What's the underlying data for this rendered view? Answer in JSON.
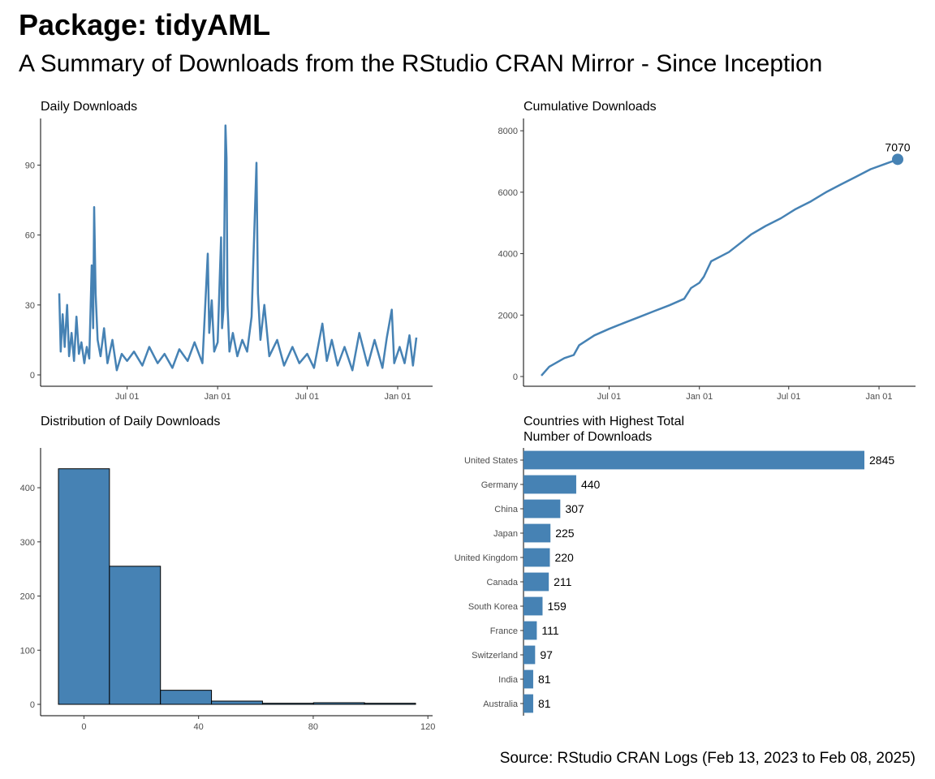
{
  "header": {
    "title": "Package: tidyAML",
    "subtitle": "A Summary of Downloads from the RStudio CRAN Mirror - Since Inception",
    "caption": "Source: RStudio CRAN Logs (Feb 13, 2023 to Feb 08, 2025)"
  },
  "colors": {
    "accent": "#4682B4",
    "bar_outline": "#000000"
  },
  "chart_data": [
    {
      "id": "daily",
      "type": "line",
      "title": "Daily Downloads",
      "x_range": [
        "2023-02-13",
        "2025-02-08"
      ],
      "x_ticks": [
        {
          "date": "2023-07-01",
          "label": "Jul 01"
        },
        {
          "date": "2024-01-01",
          "label": "Jan 01"
        },
        {
          "date": "2024-07-01",
          "label": "Jul 01"
        },
        {
          "date": "2025-01-01",
          "label": "Jan 01"
        }
      ],
      "y_ticks": [
        0,
        30,
        60,
        90
      ],
      "ylim": [
        0,
        110
      ],
      "points": [
        [
          "2023-02-13",
          35
        ],
        [
          "2023-02-16",
          10
        ],
        [
          "2023-02-20",
          26
        ],
        [
          "2023-02-24",
          12
        ],
        [
          "2023-03-01",
          30
        ],
        [
          "2023-03-05",
          8
        ],
        [
          "2023-03-10",
          18
        ],
        [
          "2023-03-15",
          6
        ],
        [
          "2023-03-20",
          25
        ],
        [
          "2023-03-25",
          9
        ],
        [
          "2023-03-30",
          14
        ],
        [
          "2023-04-05",
          5
        ],
        [
          "2023-04-10",
          12
        ],
        [
          "2023-04-15",
          7
        ],
        [
          "2023-04-20",
          47
        ],
        [
          "2023-04-23",
          20
        ],
        [
          "2023-04-25",
          72
        ],
        [
          "2023-04-28",
          35
        ],
        [
          "2023-05-02",
          15
        ],
        [
          "2023-05-08",
          8
        ],
        [
          "2023-05-15",
          20
        ],
        [
          "2023-05-22",
          5
        ],
        [
          "2023-06-01",
          15
        ],
        [
          "2023-06-10",
          2
        ],
        [
          "2023-06-20",
          9
        ],
        [
          "2023-07-01",
          6
        ],
        [
          "2023-07-15",
          10
        ],
        [
          "2023-08-01",
          4
        ],
        [
          "2023-08-15",
          12
        ],
        [
          "2023-09-01",
          5
        ],
        [
          "2023-09-15",
          9
        ],
        [
          "2023-10-01",
          3
        ],
        [
          "2023-10-15",
          11
        ],
        [
          "2023-11-01",
          6
        ],
        [
          "2023-11-15",
          14
        ],
        [
          "2023-12-01",
          5
        ],
        [
          "2023-12-12",
          52
        ],
        [
          "2023-12-15",
          18
        ],
        [
          "2023-12-20",
          32
        ],
        [
          "2023-12-25",
          10
        ],
        [
          "2024-01-01",
          14
        ],
        [
          "2024-01-05",
          40
        ],
        [
          "2024-01-08",
          59
        ],
        [
          "2024-01-10",
          20
        ],
        [
          "2024-01-13",
          28
        ],
        [
          "2024-01-17",
          107
        ],
        [
          "2024-01-19",
          93
        ],
        [
          "2024-01-21",
          30
        ],
        [
          "2024-01-25",
          10
        ],
        [
          "2024-02-01",
          18
        ],
        [
          "2024-02-10",
          8
        ],
        [
          "2024-02-20",
          15
        ],
        [
          "2024-03-01",
          10
        ],
        [
          "2024-03-10",
          25
        ],
        [
          "2024-03-20",
          91
        ],
        [
          "2024-03-23",
          35
        ],
        [
          "2024-03-28",
          15
        ],
        [
          "2024-04-05",
          30
        ],
        [
          "2024-04-15",
          8
        ],
        [
          "2024-05-01",
          15
        ],
        [
          "2024-05-15",
          4
        ],
        [
          "2024-06-01",
          12
        ],
        [
          "2024-06-15",
          5
        ],
        [
          "2024-07-01",
          9
        ],
        [
          "2024-07-15",
          3
        ],
        [
          "2024-08-01",
          22
        ],
        [
          "2024-08-10",
          6
        ],
        [
          "2024-08-20",
          15
        ],
        [
          "2024-09-01",
          4
        ],
        [
          "2024-09-15",
          12
        ],
        [
          "2024-10-01",
          2
        ],
        [
          "2024-10-15",
          18
        ],
        [
          "2024-11-01",
          4
        ],
        [
          "2024-11-15",
          15
        ],
        [
          "2024-12-01",
          3
        ],
        [
          "2024-12-10",
          16
        ],
        [
          "2024-12-20",
          28
        ],
        [
          "2024-12-25",
          5
        ],
        [
          "2025-01-05",
          12
        ],
        [
          "2025-01-15",
          5
        ],
        [
          "2025-01-25",
          17
        ],
        [
          "2025-02-01",
          4
        ],
        [
          "2025-02-08",
          16
        ]
      ]
    },
    {
      "id": "cumulative",
      "type": "line",
      "title": "Cumulative Downloads",
      "x_range": [
        "2023-02-13",
        "2025-02-08"
      ],
      "x_ticks": [
        {
          "date": "2023-07-01",
          "label": "Jul 01"
        },
        {
          "date": "2024-01-01",
          "label": "Jan 01"
        },
        {
          "date": "2024-07-01",
          "label": "Jul 01"
        },
        {
          "date": "2025-01-01",
          "label": "Jan 01"
        }
      ],
      "y_ticks": [
        0,
        2000,
        4000,
        6000,
        8000
      ],
      "ylim": [
        0,
        8400
      ],
      "points": [
        [
          "2023-02-13",
          30
        ],
        [
          "2023-03-01",
          320
        ],
        [
          "2023-04-01",
          600
        ],
        [
          "2023-04-20",
          700
        ],
        [
          "2023-05-01",
          1020
        ],
        [
          "2023-06-01",
          1340
        ],
        [
          "2023-07-01",
          1550
        ],
        [
          "2023-08-01",
          1750
        ],
        [
          "2023-09-01",
          1940
        ],
        [
          "2023-10-01",
          2130
        ],
        [
          "2023-11-01",
          2320
        ],
        [
          "2023-12-01",
          2530
        ],
        [
          "2023-12-15",
          2880
        ],
        [
          "2024-01-01",
          3050
        ],
        [
          "2024-01-10",
          3250
        ],
        [
          "2024-01-25",
          3750
        ],
        [
          "2024-03-01",
          4050
        ],
        [
          "2024-03-25",
          4350
        ],
        [
          "2024-04-15",
          4620
        ],
        [
          "2024-05-15",
          4900
        ],
        [
          "2024-06-15",
          5150
        ],
        [
          "2024-07-15",
          5450
        ],
        [
          "2024-08-15",
          5700
        ],
        [
          "2024-09-15",
          6000
        ],
        [
          "2024-10-15",
          6250
        ],
        [
          "2024-11-15",
          6500
        ],
        [
          "2024-12-15",
          6750
        ],
        [
          "2025-01-15",
          6930
        ],
        [
          "2025-02-08",
          7070
        ]
      ],
      "end_label": "7070"
    },
    {
      "id": "histogram",
      "type": "bar",
      "title": "Distribution of Daily Downloads",
      "x_ticks": [
        0,
        40,
        80,
        120
      ],
      "y_ticks": [
        0,
        100,
        200,
        300,
        400
      ],
      "xlim": [
        -9,
        121
      ],
      "ylim": [
        0,
        460
      ],
      "bins": [
        {
          "x0": -8.9,
          "x1": 8.9,
          "count": 435
        },
        {
          "x0": 8.9,
          "x1": 26.7,
          "count": 255
        },
        {
          "x0": 26.7,
          "x1": 44.5,
          "count": 26
        },
        {
          "x0": 44.5,
          "x1": 62.3,
          "count": 6
        },
        {
          "x0": 62.3,
          "x1": 80.1,
          "count": 2
        },
        {
          "x0": 80.1,
          "x1": 97.9,
          "count": 3
        },
        {
          "x0": 97.9,
          "x1": 115.7,
          "count": 2
        }
      ]
    },
    {
      "id": "countries",
      "type": "bar",
      "orientation": "horizontal",
      "title": "Countries with Highest Total",
      "title_line2": "Number of Downloads",
      "categories": [
        "United States",
        "Germany",
        "China",
        "Japan",
        "United Kingdom",
        "Canada",
        "South Korea",
        "France",
        "Switzerland",
        "India",
        "Australia"
      ],
      "values": [
        2845,
        440,
        307,
        225,
        220,
        211,
        159,
        111,
        97,
        81,
        81
      ],
      "value_labels": [
        "2845",
        "440",
        "307",
        "225",
        "220",
        "211",
        "159",
        "111",
        "97",
        "81",
        "81"
      ]
    }
  ]
}
